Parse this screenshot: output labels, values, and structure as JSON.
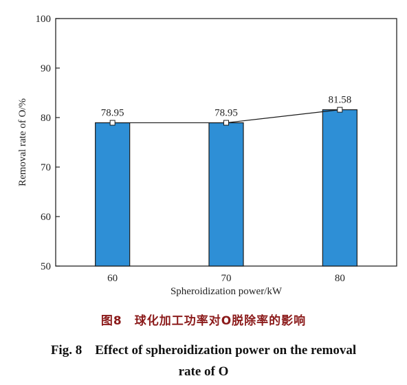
{
  "chart_data": {
    "type": "bar",
    "categories": [
      "60",
      "70",
      "80"
    ],
    "values": [
      78.95,
      78.95,
      81.58
    ],
    "value_labels": [
      "78.95",
      "78.95",
      "81.58"
    ],
    "overlay_line": true,
    "xlabel": "Spheroidization power/kW",
    "ylabel": "Removal rate of O/%",
    "ylim": [
      50,
      100
    ],
    "yticks": [
      "50",
      "60",
      "70",
      "80",
      "90",
      "100"
    ],
    "bar_color": "#2e8fd6",
    "grid": false
  },
  "caption": {
    "cn": "图8　球化加工功率对O脱除率的影响",
    "en_line1": "Fig. 8　Effect of spheroidization power on the removal",
    "en_line2": "rate of O"
  }
}
